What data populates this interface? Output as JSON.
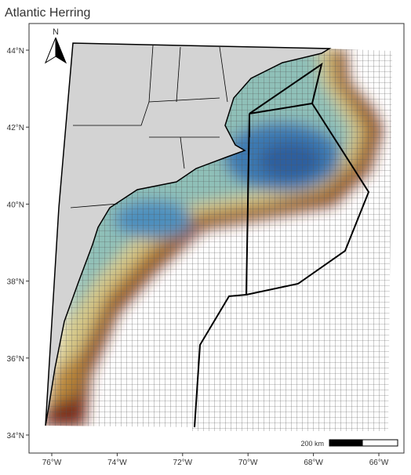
{
  "title": "Atlantic Herring",
  "y_labels": [
    "44°N",
    "42°N",
    "40°N",
    "38°N",
    "36°N",
    "34°N"
  ],
  "x_labels": [
    "76°W",
    "74°W",
    "72°W",
    "70°W",
    "68°W",
    "66°W"
  ],
  "north_arrow": "N",
  "scale_bar": "200 km"
}
